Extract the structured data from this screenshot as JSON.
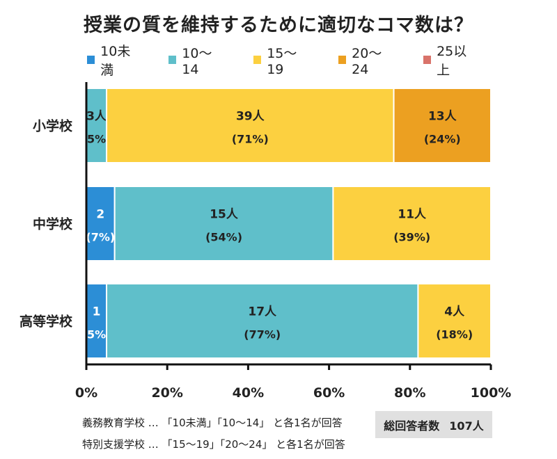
{
  "title": "授業の質を維持するために適切なコマ数は？",
  "colors": {
    "lt10": "#2c8ed6",
    "r10_14": "#5fbfca",
    "r15_19": "#fcd040",
    "r20_24": "#eca021",
    "ge25": "#d9736a"
  },
  "chart_data": {
    "type": "bar",
    "orientation": "horizontal",
    "stacked": true,
    "normalized": true,
    "categories": [
      "小学校",
      "中学校",
      "高等学校"
    ],
    "xlim": [
      0,
      100
    ],
    "x_ticks": [
      "0%",
      "20%",
      "40%",
      "60%",
      "80%",
      "100%"
    ],
    "legend_position": "top",
    "series": [
      {
        "name": "10未満",
        "color_key": "lt10",
        "values": [
          0,
          7,
          5
        ],
        "counts": [
          null,
          2,
          1
        ],
        "labels": [
          "",
          "2",
          "1"
        ],
        "pct_labels": [
          "",
          "(7%)",
          "5%"
        ]
      },
      {
        "name": "10〜14",
        "color_key": "r10_14",
        "values": [
          5,
          54,
          77
        ],
        "counts": [
          3,
          15,
          17
        ],
        "labels": [
          "3人",
          "15人",
          "17人"
        ],
        "pct_labels": [
          "5%",
          "(54%)",
          "(77%)"
        ]
      },
      {
        "name": "15〜19",
        "color_key": "r15_19",
        "values": [
          71,
          39,
          18
        ],
        "counts": [
          39,
          11,
          4
        ],
        "labels": [
          "39人",
          "11人",
          "4人"
        ],
        "pct_labels": [
          "(71%)",
          "(39%)",
          "(18%)"
        ]
      },
      {
        "name": "20〜24",
        "color_key": "r20_24",
        "values": [
          24,
          0,
          0
        ],
        "counts": [
          13,
          null,
          null
        ],
        "labels": [
          "13人",
          "",
          ""
        ],
        "pct_labels": [
          "(24%)",
          "",
          ""
        ]
      },
      {
        "name": "25以上",
        "color_key": "ge25",
        "values": [
          0,
          0,
          0
        ],
        "counts": [
          null,
          null,
          null
        ],
        "labels": [
          "",
          "",
          ""
        ],
        "pct_labels": [
          "",
          "",
          ""
        ]
      }
    ]
  },
  "footnotes": [
    "義務教育学校 … 「10未満」「10〜14」 と各1名が回答",
    "特別支援学校 … 「15〜19」「20〜24」 と各1名が回答"
  ],
  "total": {
    "label": "総回答者数",
    "value": "107人"
  }
}
